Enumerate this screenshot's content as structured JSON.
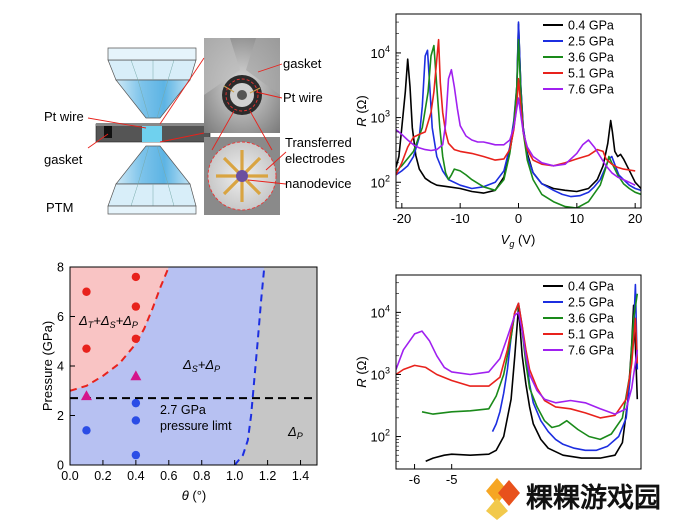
{
  "schematic": {
    "labels": {
      "pt_wire_left": "Pt wire",
      "gasket_left": "gasket",
      "ptm": "PTM",
      "gasket_right": "gasket",
      "pt_wire_right": "Pt wire",
      "transferred": "Transferred",
      "electrodes": "electrodes",
      "nanodevice": "nanodevice"
    }
  },
  "watermark": {
    "text": "粿粿游戏园"
  },
  "chart_data": [
    {
      "type": "line",
      "panel": "top-right",
      "xlabel_sym": "V",
      "xlabel_sub": "g",
      "xlabel_unit": " (V)",
      "ylabel_sym": "R",
      "ylabel_unit": " (Ω)",
      "xlim": [
        -21,
        21
      ],
      "ylim": [
        40,
        40000
      ],
      "yscale": "log",
      "xticks": [
        -20,
        -10,
        0,
        10,
        20
      ],
      "yticks": [
        {
          "value": 100,
          "base": "10",
          "exp": "2"
        },
        {
          "value": 1000,
          "base": "10",
          "exp": "3"
        },
        {
          "value": 10000,
          "base": "10",
          "exp": "4"
        }
      ],
      "legend": {
        "position": "top-right"
      },
      "series": [
        {
          "name": "0.4 GPa",
          "color": "#000000",
          "x": [
            -21,
            -20.5,
            -20,
            -19.4,
            -19,
            -18.6,
            -18.2,
            -17.6,
            -17,
            -16,
            -15,
            -14,
            -12,
            -10,
            -8,
            -6,
            -4,
            -2.5,
            -1.5,
            -0.8,
            -0.3,
            0,
            0.4,
            0.8,
            1.5,
            2.5,
            4,
            6,
            8,
            10,
            12,
            13.5,
            14.5,
            15.3,
            15.8,
            16.1,
            16.5,
            17,
            17.5,
            18,
            18.6,
            19.2,
            20,
            21
          ],
          "y": [
            170,
            250,
            700,
            2500,
            8000,
            3000,
            700,
            260,
            160,
            115,
            100,
            90,
            85,
            80,
            72,
            68,
            75,
            120,
            300,
            700,
            2500,
            28000,
            3000,
            700,
            280,
            140,
            95,
            80,
            75,
            72,
            80,
            110,
            180,
            400,
            900,
            600,
            300,
            250,
            270,
            230,
            180,
            140,
            100,
            80
          ]
        },
        {
          "name": "2.5 GPa",
          "color": "#1c2ee0",
          "x": [
            -21,
            -20,
            -19,
            -18,
            -17,
            -16.5,
            -16,
            -15.6,
            -15.2,
            -14.8,
            -14,
            -13,
            -12,
            -10,
            -8,
            -6,
            -4,
            -2.5,
            -1.5,
            -0.8,
            -0.3,
            0,
            0.4,
            0.8,
            1.5,
            2.5,
            4,
            6,
            7.5,
            9,
            10.5,
            12,
            13,
            14,
            14.8,
            15.5,
            16,
            16.6,
            17.2,
            18,
            19,
            20,
            21
          ],
          "y": [
            130,
            150,
            180,
            250,
            500,
            1500,
            9000,
            11000,
            3000,
            700,
            250,
            150,
            110,
            90,
            80,
            85,
            100,
            150,
            350,
            900,
            3000,
            30000,
            3000,
            700,
            250,
            140,
            95,
            75,
            65,
            60,
            62,
            70,
            85,
            110,
            160,
            230,
            250,
            180,
            130,
            110,
            90,
            80,
            75
          ]
        },
        {
          "name": "3.6 GPa",
          "color": "#1a8a1a",
          "x": [
            -21,
            -20,
            -18,
            -16.5,
            -15.5,
            -15,
            -14.5,
            -14,
            -13.5,
            -13,
            -12.5,
            -12,
            -11.5,
            -11,
            -10,
            -9,
            -8,
            -6,
            -4,
            -2.5,
            -1.5,
            -0.8,
            -0.3,
            0,
            0.4,
            0.8,
            1.5,
            2.5,
            4,
            6,
            8,
            10,
            12,
            14,
            15,
            15.5,
            16,
            17,
            18,
            19,
            20,
            21
          ],
          "y": [
            150,
            180,
            300,
            700,
            2500,
            9000,
            13000,
            3000,
            700,
            250,
            140,
            110,
            130,
            160,
            150,
            130,
            110,
            85,
            75,
            110,
            280,
            800,
            3000,
            16000,
            2500,
            600,
            220,
            110,
            65,
            50,
            42,
            40,
            50,
            90,
            170,
            250,
            200,
            130,
            95,
            80,
            70,
            65
          ]
        },
        {
          "name": "5.1 GPa",
          "color": "#e8221c",
          "x": [
            -21,
            -20,
            -19,
            -18,
            -17,
            -16,
            -15,
            -14.5,
            -14,
            -13.7,
            -13.4,
            -13,
            -12.5,
            -12,
            -11,
            -10,
            -8,
            -6,
            -4,
            -2.5,
            -1.5,
            -0.8,
            -0.3,
            0,
            0.4,
            0.8,
            1.5,
            2.5,
            4,
            6,
            8,
            10,
            12,
            13.5,
            14.5,
            15,
            16,
            17,
            18,
            19,
            20
          ],
          "y": [
            130,
            200,
            350,
            500,
            550,
            600,
            1200,
            2500,
            8000,
            16000,
            3500,
            1200,
            600,
            400,
            320,
            300,
            280,
            250,
            220,
            230,
            320,
            650,
            1600,
            4000,
            1500,
            600,
            320,
            220,
            190,
            180,
            200,
            230,
            260,
            320,
            300,
            230,
            190,
            170,
            160,
            155,
            150
          ]
        },
        {
          "name": "7.6 GPa",
          "color": "#a020f0",
          "x": [
            -21,
            -20,
            -19,
            -18,
            -17,
            -16,
            -15,
            -14,
            -13,
            -12.5,
            -12,
            -11.5,
            -11,
            -10.5,
            -10,
            -9,
            -8,
            -7,
            -6,
            -5,
            -4,
            -2.5,
            -1.5,
            -0.8,
            -0.3,
            0,
            0.4,
            0.8,
            1.5,
            2.5,
            4,
            6,
            8,
            10,
            11,
            12,
            13,
            14,
            15,
            16,
            17,
            18,
            19,
            20
          ],
          "y": [
            650,
            550,
            450,
            380,
            340,
            320,
            310,
            320,
            380,
            800,
            4000,
            5500,
            3000,
            1400,
            750,
            520,
            450,
            420,
            420,
            400,
            380,
            380,
            450,
            700,
            1400,
            2000,
            1100,
            600,
            350,
            250,
            200,
            180,
            190,
            280,
            380,
            450,
            350,
            250,
            180,
            140,
            120,
            110,
            100,
            90
          ]
        }
      ]
    },
    {
      "type": "scatter",
      "panel": "bottom-left",
      "ylabel": "Pressure (GPa)",
      "xlabel_sym": "θ",
      "xlabel_unit": " (°)",
      "xlim": [
        0,
        1.5
      ],
      "ylim": [
        0,
        8
      ],
      "xticks": [
        "0.0",
        "0.2",
        "0.4",
        "0.6",
        "0.8",
        "1.0",
        "1.2",
        "1.4"
      ],
      "yticks": [
        "0",
        "2",
        "4",
        "6",
        "8"
      ],
      "region_colors": {
        "red": "#f9c4c4",
        "blue": "#b7c1f2",
        "gray": "#c6c6c6"
      },
      "region_labels": {
        "red": {
          "parts": [
            [
              "Δ",
              "T"
            ],
            [
              "+Δ",
              "S"
            ],
            [
              "+Δ",
              "P"
            ]
          ]
        },
        "blue": {
          "parts": [
            [
              "Δ",
              "S"
            ],
            [
              "+Δ",
              "P"
            ]
          ]
        },
        "gray": {
          "parts": [
            [
              "Δ",
              "P"
            ]
          ]
        }
      },
      "limit_label": [
        "2.7 GPa",
        "pressure limt"
      ],
      "pressure_limit": 2.7,
      "boundary_red_blue": {
        "x": [
          0.0,
          0.1,
          0.2,
          0.3,
          0.4,
          0.45,
          0.5,
          0.55,
          0.6
        ],
        "y": [
          3.0,
          3.2,
          3.6,
          4.1,
          4.9,
          5.5,
          6.3,
          7.2,
          8.0
        ]
      },
      "boundary_blue_gray": {
        "x": [
          1.0,
          1.05,
          1.08,
          1.1,
          1.12,
          1.14,
          1.16,
          1.18
        ],
        "y": [
          0.0,
          0.4,
          1.0,
          2.0,
          3.5,
          5.0,
          6.6,
          8.0
        ]
      },
      "points": [
        {
          "x": 0.1,
          "y": 7.0,
          "marker": "circle",
          "color": "#e8221c"
        },
        {
          "x": 0.1,
          "y": 4.7,
          "marker": "circle",
          "color": "#e8221c"
        },
        {
          "x": 0.4,
          "y": 7.6,
          "marker": "circle",
          "color": "#e8221c"
        },
        {
          "x": 0.4,
          "y": 6.4,
          "marker": "circle",
          "color": "#e8221c"
        },
        {
          "x": 0.4,
          "y": 5.1,
          "marker": "circle",
          "color": "#e8221c"
        },
        {
          "x": 0.1,
          "y": 2.8,
          "marker": "triangle",
          "color": "#d4148c"
        },
        {
          "x": 0.4,
          "y": 3.6,
          "marker": "triangle",
          "color": "#d4148c"
        },
        {
          "x": 0.1,
          "y": 1.4,
          "marker": "circle",
          "color": "#2b4de6"
        },
        {
          "x": 0.4,
          "y": 2.5,
          "marker": "circle",
          "color": "#2b4de6"
        },
        {
          "x": 0.4,
          "y": 1.8,
          "marker": "circle",
          "color": "#2b4de6"
        },
        {
          "x": 0.4,
          "y": 0.4,
          "marker": "circle",
          "color": "#2b4de6"
        }
      ]
    },
    {
      "type": "line",
      "panel": "bottom-right",
      "ylabel_sym": "R",
      "ylabel_unit": " (Ω)",
      "xlim": [
        -6.5,
        0.1
      ],
      "ylim": [
        30,
        40000
      ],
      "yscale": "log",
      "xticks": [
        -6,
        -5
      ],
      "yticks": [
        {
          "value": 100,
          "base": "10",
          "exp": "2"
        },
        {
          "value": 1000,
          "base": "10",
          "exp": "3"
        },
        {
          "value": 10000,
          "base": "10",
          "exp": "4"
        }
      ],
      "legend": {
        "position": "top-right"
      },
      "series": [
        {
          "name": "0.4 GPa",
          "color": "#000000",
          "x": [
            -5.7,
            -5.5,
            -5.2,
            -5.0,
            -4.5,
            -4.0,
            -3.8,
            -3.6,
            -3.4,
            -3.3,
            -3.2,
            -3.1,
            -3.0,
            -2.9,
            -2.8,
            -2.6,
            -2.4,
            -2.0,
            -1.5,
            -1.0,
            -0.6,
            -0.4,
            -0.25,
            -0.15,
            -0.1,
            -0.05,
            0.0
          ],
          "y": [
            40,
            45,
            50,
            52,
            50,
            52,
            60,
            100,
            400,
            2000,
            12000,
            2000,
            700,
            300,
            160,
            90,
            65,
            50,
            45,
            45,
            50,
            80,
            400,
            3000,
            13000,
            3000,
            400
          ]
        },
        {
          "name": "2.5 GPa",
          "color": "#1c2ee0",
          "x": [
            -3.9,
            -3.8,
            -3.7,
            -3.6,
            -3.5,
            -3.4,
            -3.3,
            -3.2,
            -3.1,
            -3.0,
            -2.9,
            -2.8,
            -2.6,
            -2.4,
            -2.2,
            -2.0,
            -1.7,
            -1.4,
            -1.1,
            -0.8,
            -0.5,
            -0.3,
            -0.2,
            -0.1,
            -0.05,
            0.0
          ],
          "y": [
            120,
            160,
            250,
            500,
            1200,
            4000,
            10000,
            14000,
            6000,
            2000,
            700,
            350,
            180,
            120,
            90,
            75,
            65,
            60,
            60,
            70,
            100,
            200,
            800,
            5000,
            28000,
            1200
          ]
        },
        {
          "name": "3.6 GPa",
          "color": "#1a8a1a",
          "x": [
            -5.8,
            -5.5,
            -5.0,
            -4.5,
            -4.0,
            -3.8,
            -3.6,
            -3.4,
            -3.3,
            -3.2,
            -3.1,
            -3.0,
            -2.9,
            -2.7,
            -2.5,
            -2.3,
            -2.1,
            -1.9,
            -1.6,
            -1.3,
            -1.0,
            -0.7,
            -0.4,
            -0.2,
            -0.1,
            0.0
          ],
          "y": [
            250,
            230,
            250,
            260,
            280,
            450,
            1000,
            4000,
            10000,
            13000,
            5000,
            1500,
            600,
            300,
            180,
            140,
            150,
            180,
            130,
            100,
            90,
            110,
            200,
            1000,
            8000,
            20000
          ]
        },
        {
          "name": "5.1 GPa",
          "color": "#e8221c",
          "x": [
            -6.5,
            -6.3,
            -6.0,
            -5.7,
            -5.4,
            -5.0,
            -4.5,
            -4.0,
            -3.7,
            -3.5,
            -3.3,
            -3.2,
            -3.1,
            -3.0,
            -2.9,
            -2.7,
            -2.5,
            -2.2,
            -1.8,
            -1.4,
            -1.0,
            -0.6,
            -0.3,
            -0.15,
            -0.05,
            0.0
          ],
          "y": [
            1000,
            1200,
            1400,
            1300,
            1000,
            800,
            650,
            650,
            900,
            2500,
            10000,
            14000,
            6000,
            2500,
            1200,
            600,
            380,
            300,
            280,
            240,
            200,
            220,
            400,
            1500,
            8000,
            1500
          ]
        },
        {
          "name": "7.6 GPa",
          "color": "#a020f0",
          "x": [
            -6.5,
            -6.3,
            -6.0,
            -5.8,
            -5.6,
            -5.4,
            -5.2,
            -5.0,
            -4.5,
            -4.0,
            -3.7,
            -3.5,
            -3.3,
            -3.2,
            -3.1,
            -3.0,
            -2.9,
            -2.7,
            -2.5,
            -2.2,
            -1.8,
            -1.4,
            -1.0,
            -0.6,
            -0.3,
            -0.15,
            0.0
          ],
          "y": [
            1200,
            2500,
            4500,
            5000,
            3500,
            2000,
            1300,
            1100,
            1000,
            1100,
            1800,
            4000,
            9000,
            10000,
            5000,
            2000,
            1000,
            550,
            400,
            350,
            380,
            350,
            280,
            230,
            280,
            600,
            2500
          ]
        }
      ]
    }
  ]
}
